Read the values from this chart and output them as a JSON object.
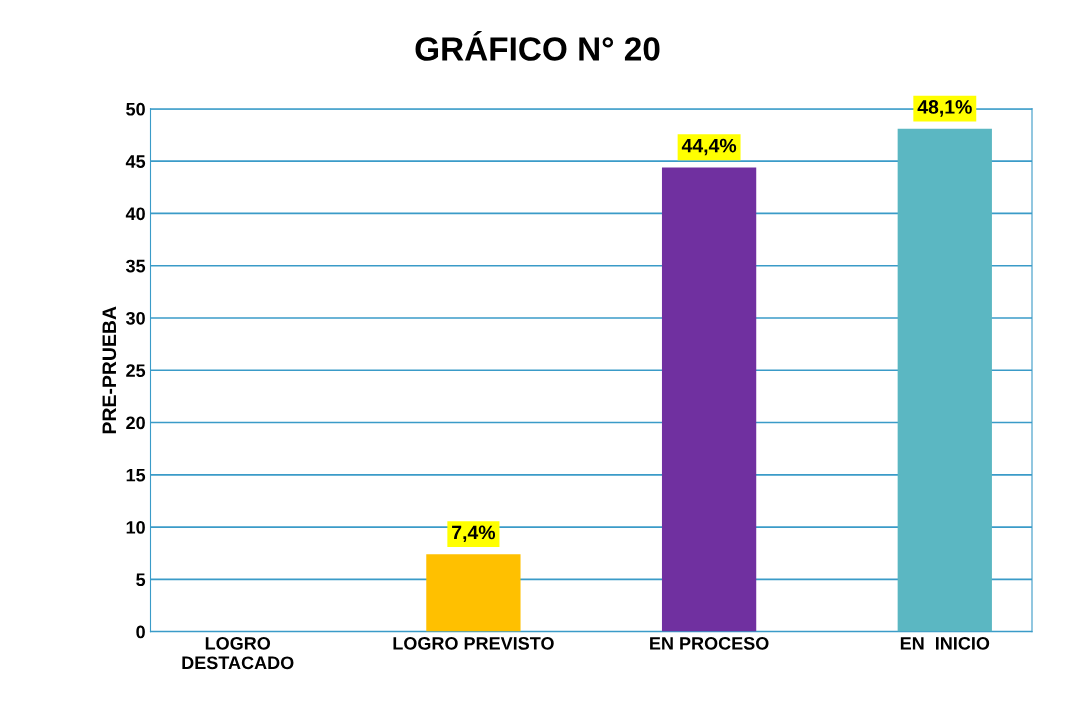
{
  "chart_data": {
    "type": "bar",
    "title": "GRÁFICO N° 20",
    "ylabel": "PRE-PRUEBA",
    "categories": [
      "LOGRO\nDESTACADO",
      "LOGRO PREVISTO",
      "EN PROCESO",
      "EN  INICIO"
    ],
    "values": [
      0,
      7.4,
      44.4,
      48.1
    ],
    "colors": [
      "#4f81bd",
      "#ffc000",
      "#7030a0",
      "#5bb7c2"
    ],
    "value_labels": [
      null,
      "7,4%",
      "44,4%",
      "48,1%"
    ],
    "ylim": [
      0,
      50
    ],
    "yticks": [
      0,
      5,
      10,
      15,
      20,
      25,
      30,
      35,
      40,
      45,
      50
    ],
    "grid": "y"
  }
}
